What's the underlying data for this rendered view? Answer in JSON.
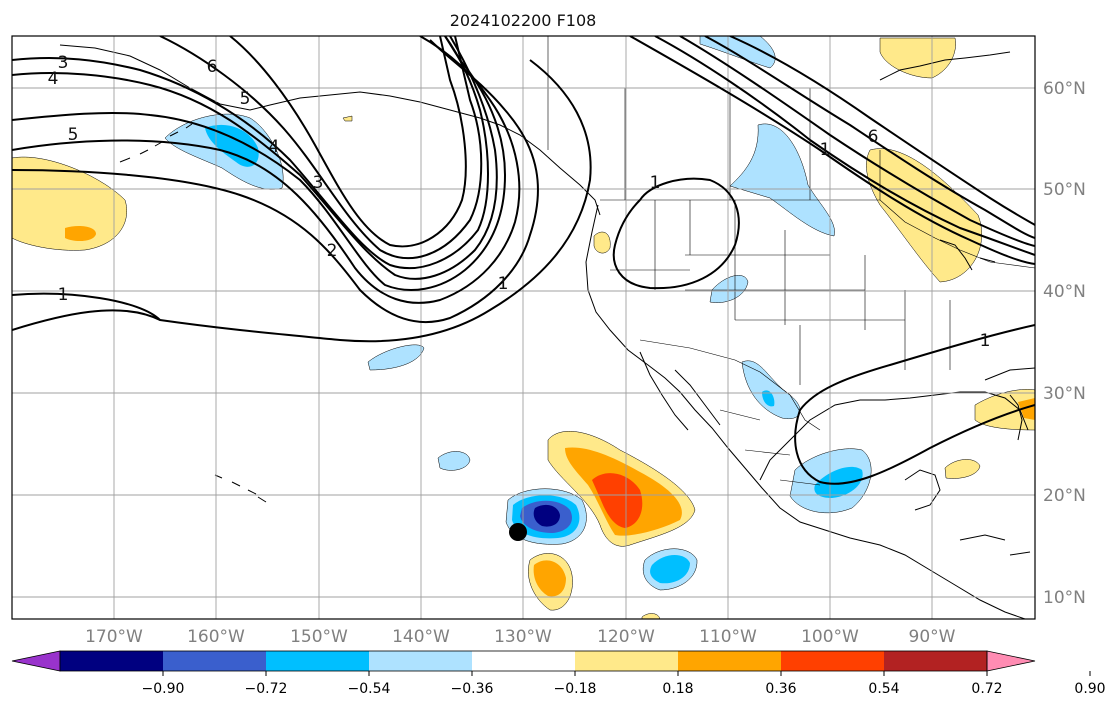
{
  "title": "2024102200 F108",
  "map": {
    "lat_labels": [
      "60°N",
      "50°N",
      "40°N",
      "30°N",
      "20°N",
      "10°N"
    ],
    "lon_labels": [
      "170°W",
      "160°W",
      "150°W",
      "140°W",
      "130°W",
      "120°W",
      "110°W",
      "100°W",
      "90°W"
    ],
    "contour_labels": [
      "3",
      "4",
      "5",
      "6",
      "5",
      "4",
      "3",
      "2",
      "1",
      "1",
      "1",
      "1",
      "1",
      "6"
    ]
  },
  "colorbar": {
    "tick_labels": [
      "−0.90",
      "−0.72",
      "−0.54",
      "−0.36",
      "−0.18",
      "0.18",
      "0.36",
      "0.54",
      "0.72",
      "0.90"
    ],
    "colors": [
      "#9933cc",
      "#000080",
      "#3a5fcd",
      "#00bfff",
      "#aee2ff",
      "#ffffff",
      "#ffe98a",
      "#ffa500",
      "#ff4000",
      "#b22222",
      "#ff8cb3"
    ]
  }
}
